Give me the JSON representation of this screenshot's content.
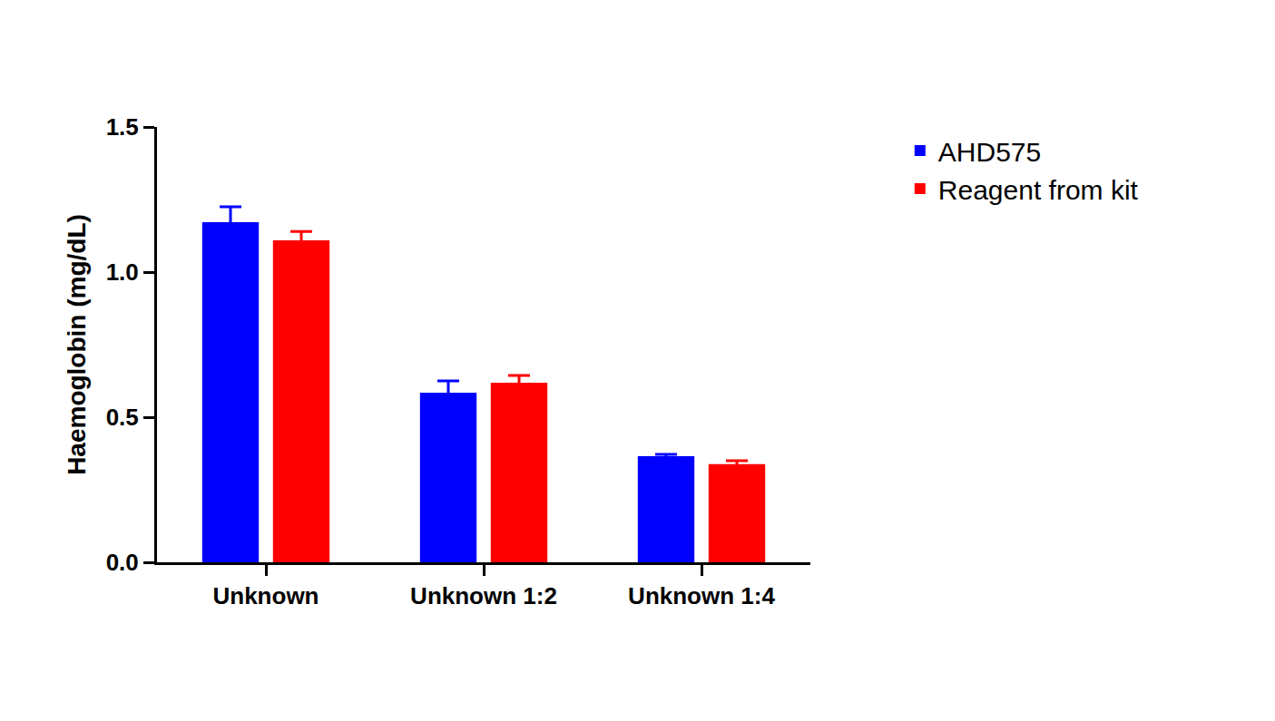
{
  "chart_data": {
    "type": "bar",
    "y_label": "Haemoglobin (mg/dL)",
    "categories": [
      "Unknown",
      "Unknown 1:2",
      "Unknown 1:4"
    ],
    "series": [
      {
        "name": "AHD575",
        "color": "#0000ff",
        "values": [
          1.172,
          0.584,
          0.366
        ],
        "errors": [
          0.053,
          0.041,
          0.006
        ]
      },
      {
        "name": "Reagent from kit",
        "color": "#ff0000",
        "values": [
          1.109,
          0.619,
          0.338
        ],
        "errors": [
          0.031,
          0.025,
          0.012
        ]
      }
    ],
    "ylim": [
      0,
      1.5
    ],
    "yticks": [
      {
        "value": 0,
        "label": "0.0"
      },
      {
        "value": 0.5,
        "label": "0.5"
      },
      {
        "value": 1,
        "label": "1.0"
      },
      {
        "value": 1.5,
        "label": "1.5"
      }
    ],
    "grid": false,
    "legend": "right"
  }
}
